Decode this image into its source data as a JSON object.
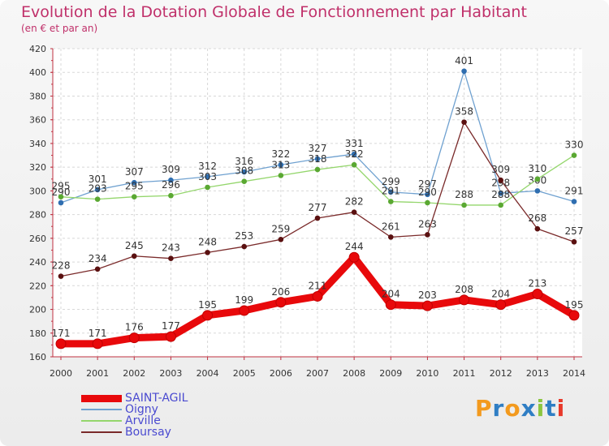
{
  "chart_data": {
    "type": "line",
    "title": "Evolution de la Dotation Globale de Fonctionnement par Habitant",
    "subtitle": "(en € et par an)",
    "categories": [
      "2000",
      "2001",
      "2002",
      "2003",
      "2004",
      "2005",
      "2006",
      "2007",
      "2008",
      "2009",
      "2010",
      "2011",
      "2012",
      "2013",
      "2014"
    ],
    "ylim": [
      160,
      420
    ],
    "yticks": [
      160,
      180,
      200,
      220,
      240,
      260,
      280,
      300,
      320,
      340,
      360,
      380,
      400,
      420
    ],
    "grid": true,
    "legend_position": "bottom-left",
    "series": [
      {
        "name": "SAINT-AGIL",
        "color": "#e8090b",
        "values": [
          171,
          171,
          176,
          177,
          195,
          199,
          206,
          211,
          244,
          204,
          203,
          208,
          204,
          213,
          195
        ]
      },
      {
        "name": "Oigny",
        "color": "#6fa1d0",
        "values": [
          290,
          301,
          307,
          309,
          312,
          316,
          322,
          327,
          331,
          299,
          297,
          401,
          298,
          300,
          291
        ],
        "labels": [
          "290",
          "301",
          "307",
          "309",
          "312",
          "316",
          "322",
          "327",
          "331",
          "299",
          "297",
          "401",
          "298",
          "300",
          "291"
        ]
      },
      {
        "name": "Arville",
        "color": "#94d66c",
        "values": [
          295,
          293,
          295,
          296,
          303,
          308,
          313,
          318,
          322,
          291,
          290,
          288,
          288,
          310,
          330
        ],
        "labels": [
          "295",
          "293",
          "295",
          "296",
          "303",
          "308",
          "313",
          "318",
          "322",
          "291",
          "290",
          "288",
          "288",
          "310",
          "330"
        ]
      },
      {
        "name": "Boursay",
        "color": "#7a2a2a",
        "values": [
          228,
          234,
          245,
          243,
          248,
          253,
          259,
          277,
          282,
          261,
          263,
          358,
          309,
          268,
          257
        ]
      }
    ]
  },
  "logo": {
    "text": "Proxiti",
    "letters": [
      {
        "ch": "P",
        "color": "#f39a1e"
      },
      {
        "ch": "r",
        "color": "#2f7ec4"
      },
      {
        "ch": "o",
        "color": "#f39a1e"
      },
      {
        "ch": "x",
        "color": "#2f7ec4"
      },
      {
        "ch": "i",
        "color": "#8cc63f"
      },
      {
        "ch": "t",
        "color": "#2f7ec4"
      },
      {
        "ch": "i",
        "color": "#e8392a"
      }
    ]
  }
}
